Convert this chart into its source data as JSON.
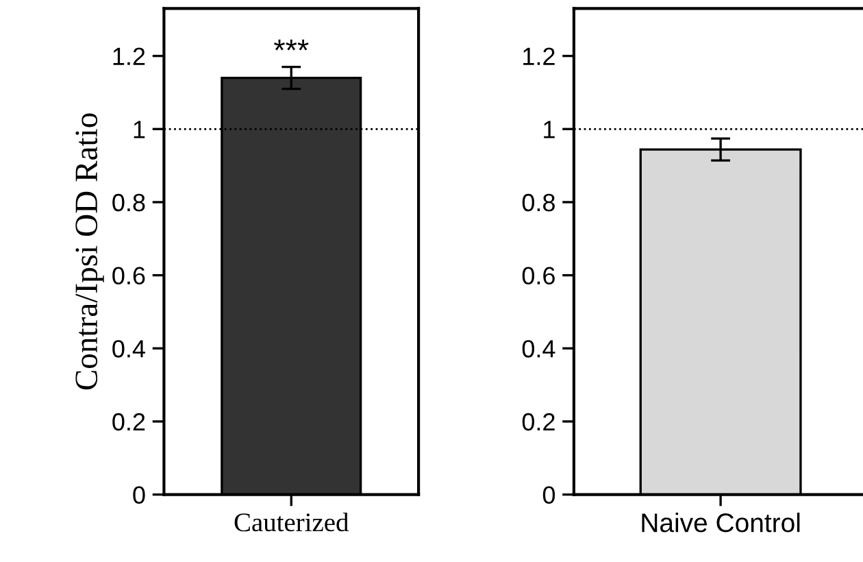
{
  "chart_data": [
    {
      "type": "bar",
      "ylabel": "Contra/Ipsi OD Ratio",
      "categories": [
        "Cauterized"
      ],
      "values": [
        1.14
      ],
      "errors": [
        0.03
      ],
      "color": "#333333",
      "ylim": [
        0,
        1.33
      ],
      "yticks": [
        0,
        0.2,
        0.4,
        0.6,
        0.8,
        1,
        1.2
      ],
      "ref_lines": [
        {
          "axis": "y",
          "value": 1,
          "line_style": "dotted",
          "color": "#000000"
        }
      ],
      "annotations": [
        {
          "text": "***",
          "x": "Cauterized",
          "y": 1.17
        }
      ],
      "grid": false,
      "legend": false
    },
    {
      "type": "bar",
      "categories": [
        "Naive Control"
      ],
      "values": [
        0.944
      ],
      "errors": [
        0.03
      ],
      "color": "#d8d8d8",
      "ylim": [
        0,
        1.33
      ],
      "yticks": [
        0,
        0.2,
        0.4,
        0.6,
        0.8,
        1,
        1.2
      ],
      "ref_lines": [
        {
          "axis": "y",
          "value": 1,
          "line_style": "dotted",
          "color": "#000000"
        }
      ],
      "grid": false,
      "legend": false
    }
  ]
}
